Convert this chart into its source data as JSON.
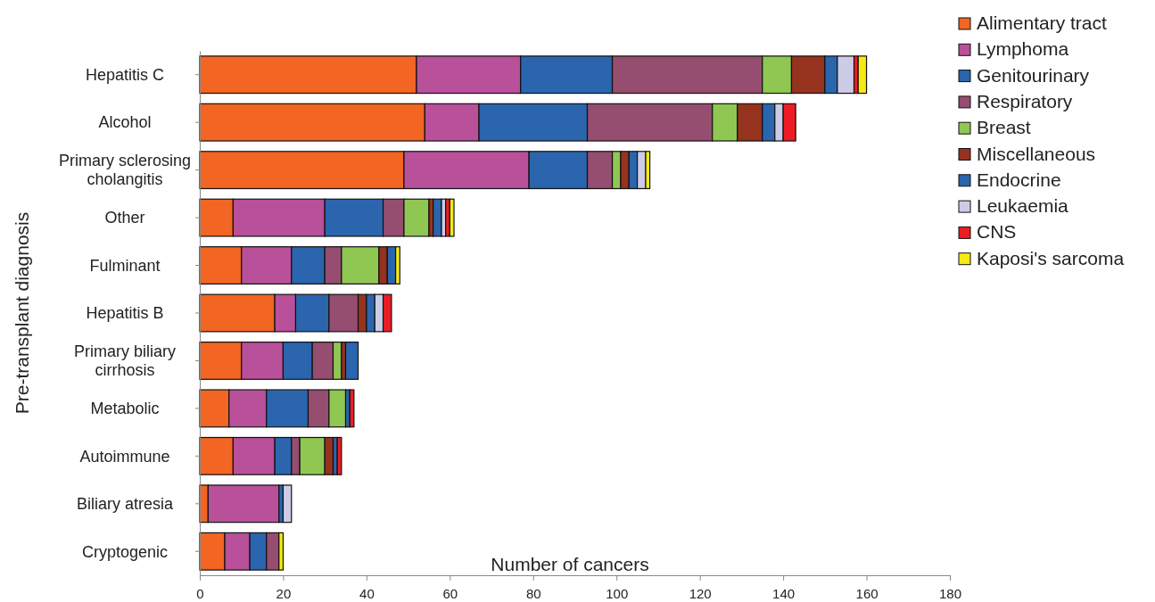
{
  "chart_data": {
    "type": "bar",
    "orientation": "horizontal",
    "stacked": true,
    "xlabel": "Number of cancers",
    "ylabel": "Pre-transplant diagnosis",
    "categories": [
      "Hepatitis C",
      "Alcohol",
      "Primary sclerosing cholangitis",
      "Other",
      "Fulminant",
      "Hepatitis B",
      "Primary biliary cirrhosis",
      "Metabolic",
      "Autoimmune",
      "Biliary atresia",
      "Cryptogenic"
    ],
    "xlim": [
      0,
      180
    ],
    "xticks": [
      0,
      20,
      40,
      60,
      80,
      100,
      120,
      140,
      160,
      180
    ],
    "grid": false,
    "legend": "top right",
    "series": [
      {
        "name": "Alimentary tract",
        "color": "#f26522",
        "values": [
          52,
          54,
          49,
          8,
          10,
          18,
          10,
          7,
          8,
          2,
          6
        ]
      },
      {
        "name": "Lymphoma",
        "color": "#b8509a",
        "values": [
          25,
          13,
          30,
          22,
          12,
          5,
          10,
          9,
          10,
          17,
          6
        ]
      },
      {
        "name": "Genitourinary",
        "color": "#2a65ae",
        "values": [
          22,
          26,
          14,
          14,
          8,
          8,
          7,
          10,
          4,
          1,
          4
        ]
      },
      {
        "name": "Respiratory",
        "color": "#954d70",
        "values": [
          36,
          30,
          6,
          5,
          4,
          7,
          5,
          5,
          2,
          0,
          3
        ]
      },
      {
        "name": "Breast",
        "color": "#8fc752",
        "values": [
          7,
          6,
          2,
          6,
          9,
          0,
          2,
          4,
          6,
          0,
          0
        ]
      },
      {
        "name": "Miscellaneous",
        "color": "#96331f",
        "values": [
          8,
          6,
          2,
          1,
          2,
          2,
          1,
          0,
          2,
          0,
          0
        ]
      },
      {
        "name": "Endocrine",
        "color": "#2a65ae",
        "values": [
          3,
          3,
          2,
          2,
          2,
          2,
          3,
          1,
          1,
          0,
          0
        ]
      },
      {
        "name": "Leukaemia",
        "color": "#cccce6",
        "values": [
          4,
          2,
          2,
          1,
          0,
          2,
          0,
          0,
          0,
          2,
          0
        ]
      },
      {
        "name": "CNS",
        "color": "#ed1c24",
        "values": [
          1,
          3,
          0,
          1,
          0,
          2,
          0,
          1,
          1,
          0,
          0
        ]
      },
      {
        "name": "Kaposi's sarcoma",
        "color": "#f5ea14",
        "values": [
          2,
          0,
          1,
          1,
          1,
          0,
          0,
          0,
          0,
          0,
          1
        ]
      }
    ]
  }
}
